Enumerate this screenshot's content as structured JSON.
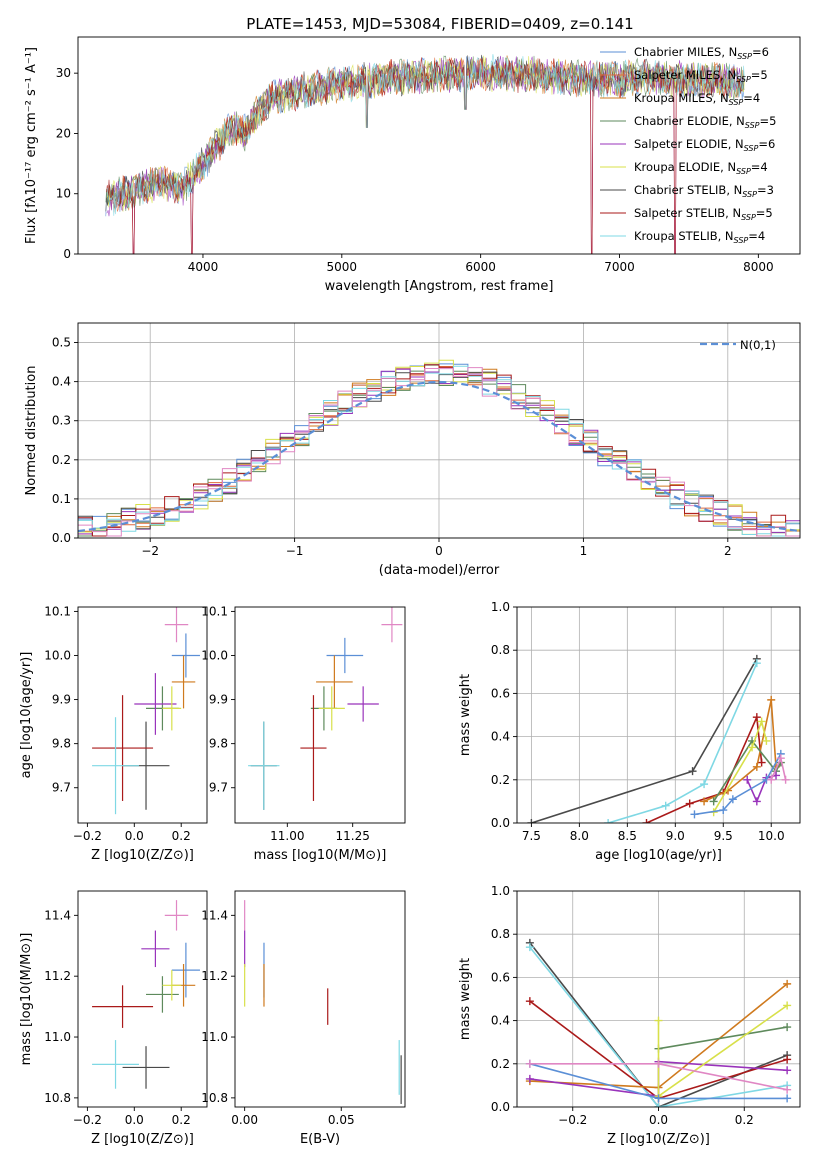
{
  "title": "PLATE=1453, MJD=53084, FIBERID=0409, z=0.141",
  "chart_data": [
    {
      "id": "spectrum",
      "type": "line",
      "xlabel": "wavelength [Angstrom, rest frame]",
      "ylabel": "Flux [fλ10⁻¹⁷ erg cm⁻² s⁻¹ A⁻¹]",
      "xlim": [
        3100,
        8300
      ],
      "ylim": [
        0,
        36
      ],
      "xticks": [
        4000,
        5000,
        6000,
        7000,
        8000
      ],
      "yticks": [
        0,
        10,
        20,
        30
      ],
      "grid": false,
      "legend_position": "top-right",
      "series": [
        {
          "name": "Chabrier MILES, N_SSP=6",
          "color": "#5b8fd6"
        },
        {
          "name": "Salpeter MILES, N_SSP=5",
          "color": "#e06a3c"
        },
        {
          "name": "Kroupa MILES, N_SSP=4",
          "color": "#cf7a1e"
        },
        {
          "name": "Chabrier ELODIE, N_SSP=5",
          "color": "#5e8a5c"
        },
        {
          "name": "Salpeter ELODIE, N_SSP=6",
          "color": "#9933bb"
        },
        {
          "name": "Kroupa ELODIE, N_SSP=4",
          "color": "#d8e04a"
        },
        {
          "name": "Chabrier STELIB, N_SSP=3",
          "color": "#4a4a4a"
        },
        {
          "name": "Salpeter STELIB, N_SSP=5",
          "color": "#aa1a1a"
        },
        {
          "name": "Kroupa STELIB, N_SSP=4",
          "color": "#7fd8e4"
        }
      ],
      "continuum": [
        [
          3300,
          9
        ],
        [
          3500,
          10.5
        ],
        [
          3700,
          12
        ],
        [
          3850,
          11
        ],
        [
          4000,
          15
        ],
        [
          4100,
          18
        ],
        [
          4200,
          21
        ],
        [
          4300,
          20
        ],
        [
          4400,
          24
        ],
        [
          4500,
          26
        ],
        [
          4700,
          27
        ],
        [
          4900,
          28
        ],
        [
          5100,
          28.5
        ],
        [
          5300,
          29
        ],
        [
          5500,
          29.5
        ],
        [
          5700,
          29.8
        ],
        [
          5900,
          30
        ],
        [
          6100,
          30
        ],
        [
          6300,
          29.8
        ],
        [
          6500,
          29.5
        ],
        [
          6800,
          29
        ],
        [
          7000,
          29
        ],
        [
          7200,
          29.5
        ],
        [
          7400,
          29
        ],
        [
          7600,
          28.8
        ],
        [
          7800,
          28.5
        ],
        [
          7900,
          28.3
        ]
      ],
      "dips": [
        [
          3500,
          0
        ],
        [
          3920,
          0
        ],
        [
          5180,
          21
        ],
        [
          5890,
          24
        ],
        [
          6800,
          0
        ],
        [
          7400,
          0
        ]
      ]
    },
    {
      "id": "residuals",
      "type": "histogram",
      "xlabel": "(data-model)/error",
      "ylabel": "Normed distribution",
      "xlim": [
        -2.5,
        2.5
      ],
      "ylim": [
        0,
        0.55
      ],
      "xticks": [
        -2,
        -1,
        0,
        1,
        2
      ],
      "yticks": [
        0.0,
        0.1,
        0.2,
        0.3,
        0.4,
        0.5
      ],
      "grid": true,
      "legend_position": "top-right",
      "reference_curve": {
        "name": "N(0,1)",
        "color": "#5b8fd6"
      },
      "bin_width": 0.1
    },
    {
      "id": "age_vs_Z",
      "type": "errorbar",
      "xlabel": "Z [log10(Z/Z⊙)]",
      "ylabel": "age  [log10(age/yr)]",
      "xlim": [
        -0.24,
        0.31
      ],
      "ylim": [
        9.62,
        10.11
      ],
      "xticks": [
        -0.2,
        0.0,
        0.2
      ],
      "yticks": [
        9.7,
        9.8,
        9.9,
        10.0,
        10.1
      ],
      "points": [
        {
          "x": 0.22,
          "y": 10.0,
          "xerr": 0.06,
          "yerr": 0.05,
          "color": "#5b8fd6"
        },
        {
          "x": 0.21,
          "y": 9.94,
          "xerr": 0.05,
          "yerr": 0.06,
          "color": "#cf7a1e"
        },
        {
          "x": 0.18,
          "y": 10.07,
          "xerr": 0.05,
          "yerr": 0.04,
          "color": "#e087c4"
        },
        {
          "x": 0.12,
          "y": 9.88,
          "xerr": 0.07,
          "yerr": 0.05,
          "color": "#5e8a5c"
        },
        {
          "x": 0.09,
          "y": 9.89,
          "xerr": 0.09,
          "yerr": 0.07,
          "color": "#9933bb"
        },
        {
          "x": 0.16,
          "y": 9.88,
          "xerr": 0.04,
          "yerr": 0.05,
          "color": "#d8e04a"
        },
        {
          "x": 0.05,
          "y": 9.75,
          "xerr": 0.1,
          "yerr": 0.1,
          "color": "#4a4a4a"
        },
        {
          "x": -0.05,
          "y": 9.79,
          "xerr": 0.13,
          "yerr": 0.12,
          "color": "#aa1a1a"
        },
        {
          "x": -0.08,
          "y": 9.75,
          "xerr": 0.1,
          "yerr": 0.11,
          "color": "#7fd8e4"
        }
      ]
    },
    {
      "id": "age_vs_mass",
      "type": "errorbar",
      "xlabel": "mass [log10(M/M⊙)]",
      "ylabel": "",
      "xlim": [
        10.8,
        11.45
      ],
      "ylim": [
        9.62,
        10.11
      ],
      "xticks": [
        11.0,
        11.25
      ],
      "yticks": [
        9.7,
        9.8,
        9.9,
        10.0,
        10.1
      ],
      "points": [
        {
          "x": 11.22,
          "y": 10.0,
          "xerr": 0.07,
          "yerr": 0.04,
          "color": "#5b8fd6"
        },
        {
          "x": 11.18,
          "y": 9.94,
          "xerr": 0.07,
          "yerr": 0.06,
          "color": "#cf7a1e"
        },
        {
          "x": 11.4,
          "y": 10.07,
          "xerr": 0.04,
          "yerr": 0.04,
          "color": "#e087c4"
        },
        {
          "x": 11.14,
          "y": 9.88,
          "xerr": 0.05,
          "yerr": 0.05,
          "color": "#5e8a5c"
        },
        {
          "x": 11.29,
          "y": 9.89,
          "xerr": 0.06,
          "yerr": 0.04,
          "color": "#9933bb"
        },
        {
          "x": 11.17,
          "y": 9.88,
          "xerr": 0.05,
          "yerr": 0.05,
          "color": "#d8e04a"
        },
        {
          "x": 10.91,
          "y": 9.75,
          "xerr": 0.05,
          "yerr": 0.1,
          "color": "#4a4a4a"
        },
        {
          "x": 11.1,
          "y": 9.79,
          "xerr": 0.05,
          "yerr": 0.12,
          "color": "#aa1a1a"
        },
        {
          "x": 10.91,
          "y": 9.75,
          "xerr": 0.06,
          "yerr": 0.1,
          "color": "#7fd8e4"
        }
      ]
    },
    {
      "id": "massweight_vs_age",
      "type": "line",
      "xlabel": "age  [log10(age/yr)]",
      "ylabel": "mass weight",
      "xlim": [
        7.35,
        10.3
      ],
      "ylim": [
        0,
        1
      ],
      "xticks": [
        7.5,
        8.0,
        8.5,
        9.0,
        9.5,
        10.0
      ],
      "yticks": [
        0.0,
        0.2,
        0.4,
        0.6,
        0.8,
        1.0
      ],
      "grid": true,
      "series": [
        {
          "color": "#4a4a4a",
          "points": [
            [
              7.5,
              0.0
            ],
            [
              9.18,
              0.24
            ],
            [
              9.85,
              0.76
            ]
          ]
        },
        {
          "color": "#7fd8e4",
          "points": [
            [
              8.3,
              0.0
            ],
            [
              8.9,
              0.08
            ],
            [
              9.3,
              0.18
            ],
            [
              9.85,
              0.74
            ]
          ]
        },
        {
          "color": "#aa1a1a",
          "points": [
            [
              8.7,
              0.0
            ],
            [
              9.15,
              0.09
            ],
            [
              9.5,
              0.14
            ],
            [
              9.85,
              0.49
            ],
            [
              9.9,
              0.28
            ]
          ]
        },
        {
          "color": "#cf7a1e",
          "points": [
            [
              9.3,
              0.1
            ],
            [
              9.55,
              0.15
            ],
            [
              9.85,
              0.26
            ],
            [
              10.0,
              0.57
            ],
            [
              10.05,
              0.26
            ]
          ]
        },
        {
          "color": "#5e8a5c",
          "points": [
            [
              9.4,
              0.1
            ],
            [
              9.8,
              0.38
            ],
            [
              10.05,
              0.24
            ],
            [
              10.1,
              0.28
            ]
          ]
        },
        {
          "color": "#9933bb",
          "points": [
            [
              9.75,
              0.2
            ],
            [
              9.85,
              0.1
            ],
            [
              9.95,
              0.21
            ],
            [
              10.05,
              0.22
            ]
          ]
        },
        {
          "color": "#d8e04a",
          "points": [
            [
              9.4,
              0.05
            ],
            [
              9.8,
              0.35
            ],
            [
              9.9,
              0.47
            ],
            [
              9.95,
              0.38
            ]
          ]
        },
        {
          "color": "#5b8fd6",
          "points": [
            [
              9.2,
              0.04
            ],
            [
              9.5,
              0.06
            ],
            [
              9.6,
              0.11
            ],
            [
              9.95,
              0.2
            ],
            [
              10.1,
              0.32
            ]
          ]
        },
        {
          "color": "#e087c4",
          "points": [
            [
              10.0,
              0.2
            ],
            [
              10.1,
              0.3
            ],
            [
              10.15,
              0.2
            ]
          ]
        }
      ]
    },
    {
      "id": "mass_vs_Z",
      "type": "errorbar",
      "xlabel": "Z [log10(Z/Z⊙)]",
      "ylabel": "mass [log10(M/M⊙)]",
      "xlim": [
        -0.24,
        0.31
      ],
      "ylim": [
        10.77,
        11.48
      ],
      "xticks": [
        -0.2,
        0.0,
        0.2
      ],
      "yticks": [
        10.8,
        11.0,
        11.2,
        11.4
      ],
      "points": [
        {
          "x": 0.22,
          "y": 11.22,
          "xerr": 0.06,
          "yerr": 0.09,
          "color": "#5b8fd6"
        },
        {
          "x": 0.21,
          "y": 11.17,
          "xerr": 0.05,
          "yerr": 0.07,
          "color": "#cf7a1e"
        },
        {
          "x": 0.18,
          "y": 11.4,
          "xerr": 0.05,
          "yerr": 0.05,
          "color": "#e087c4"
        },
        {
          "x": 0.12,
          "y": 11.14,
          "xerr": 0.07,
          "yerr": 0.06,
          "color": "#5e8a5c"
        },
        {
          "x": 0.09,
          "y": 11.29,
          "xerr": 0.06,
          "yerr": 0.06,
          "color": "#9933bb"
        },
        {
          "x": 0.16,
          "y": 11.17,
          "xerr": 0.04,
          "yerr": 0.05,
          "color": "#d8e04a"
        },
        {
          "x": 0.05,
          "y": 10.9,
          "xerr": 0.1,
          "yerr": 0.07,
          "color": "#4a4a4a"
        },
        {
          "x": -0.05,
          "y": 11.1,
          "xerr": 0.13,
          "yerr": 0.07,
          "color": "#aa1a1a"
        },
        {
          "x": -0.08,
          "y": 10.91,
          "xerr": 0.1,
          "yerr": 0.08,
          "color": "#7fd8e4"
        }
      ]
    },
    {
      "id": "mass_vs_ebv",
      "type": "errorbar",
      "xlabel": "E(B-V)",
      "ylabel": "",
      "xlim": [
        -0.005,
        0.083
      ],
      "ylim": [
        10.77,
        11.48
      ],
      "xticks": [
        0.0,
        0.05
      ],
      "yticks": [
        10.8,
        11.0,
        11.2,
        11.4
      ],
      "points": [
        {
          "x": 0.0,
          "y": 11.4,
          "xerr": 0,
          "yerr": 0.05,
          "color": "#e087c4"
        },
        {
          "x": 0.0,
          "y": 11.29,
          "xerr": 0,
          "yerr": 0.06,
          "color": "#9933bb"
        },
        {
          "x": 0.0,
          "y": 11.17,
          "xerr": 0,
          "yerr": 0.07,
          "color": "#d8e04a"
        },
        {
          "x": 0.01,
          "y": 11.22,
          "xerr": 0,
          "yerr": 0.09,
          "color": "#5b8fd6"
        },
        {
          "x": 0.01,
          "y": 11.17,
          "xerr": 0,
          "yerr": 0.07,
          "color": "#cf7a1e"
        },
        {
          "x": 0.043,
          "y": 11.1,
          "xerr": 0,
          "yerr": 0.06,
          "color": "#aa1a1a"
        },
        {
          "x": 0.08,
          "y": 10.9,
          "xerr": 0,
          "yerr": 0.09,
          "color": "#7fd8e4"
        },
        {
          "x": 0.081,
          "y": 10.86,
          "xerr": 0,
          "yerr": 0.08,
          "color": "#4a4a4a"
        }
      ]
    },
    {
      "id": "massweight_vs_Z",
      "type": "line",
      "xlabel": "Z [log10(Z/Z⊙)]",
      "ylabel": "mass weight",
      "xlim": [
        -0.33,
        0.33
      ],
      "ylim": [
        0,
        1
      ],
      "xticks": [
        -0.2,
        0.0,
        0.2
      ],
      "yticks": [
        0.0,
        0.2,
        0.4,
        0.6,
        0.8,
        1.0
      ],
      "grid": true,
      "series": [
        {
          "color": "#4a4a4a",
          "points": [
            [
              -0.3,
              0.76
            ],
            [
              0.0,
              0.0
            ],
            [
              0.3,
              0.24
            ]
          ]
        },
        {
          "color": "#7fd8e4",
          "points": [
            [
              -0.3,
              0.74
            ],
            [
              0.0,
              0.0
            ],
            [
              0.3,
              0.1
            ]
          ]
        },
        {
          "color": "#aa1a1a",
          "points": [
            [
              -0.3,
              0.49
            ],
            [
              0.0,
              0.04
            ],
            [
              0.3,
              0.22
            ]
          ]
        },
        {
          "color": "#cf7a1e",
          "points": [
            [
              -0.3,
              0.12
            ],
            [
              0.0,
              0.09
            ],
            [
              0.3,
              0.57
            ]
          ]
        },
        {
          "color": "#5e8a5c",
          "points": [
            [
              0.0,
              0.27
            ],
            [
              0.3,
              0.37
            ]
          ]
        },
        {
          "color": "#9933bb",
          "points": [
            [
              -0.3,
              0.13
            ],
            [
              0.0,
              0.05
            ],
            [
              0.0,
              0.21
            ],
            [
              0.3,
              0.17
            ]
          ]
        },
        {
          "color": "#d8e04a",
          "points": [
            [
              0.0,
              0.4
            ],
            [
              0.0,
              0.05
            ],
            [
              0.3,
              0.47
            ]
          ]
        },
        {
          "color": "#5b8fd6",
          "points": [
            [
              -0.3,
              0.2
            ],
            [
              0.0,
              0.04
            ],
            [
              0.3,
              0.04
            ]
          ]
        },
        {
          "color": "#e087c4",
          "points": [
            [
              -0.3,
              0.2
            ],
            [
              0.0,
              0.2
            ],
            [
              0.3,
              0.08
            ]
          ]
        }
      ]
    }
  ]
}
